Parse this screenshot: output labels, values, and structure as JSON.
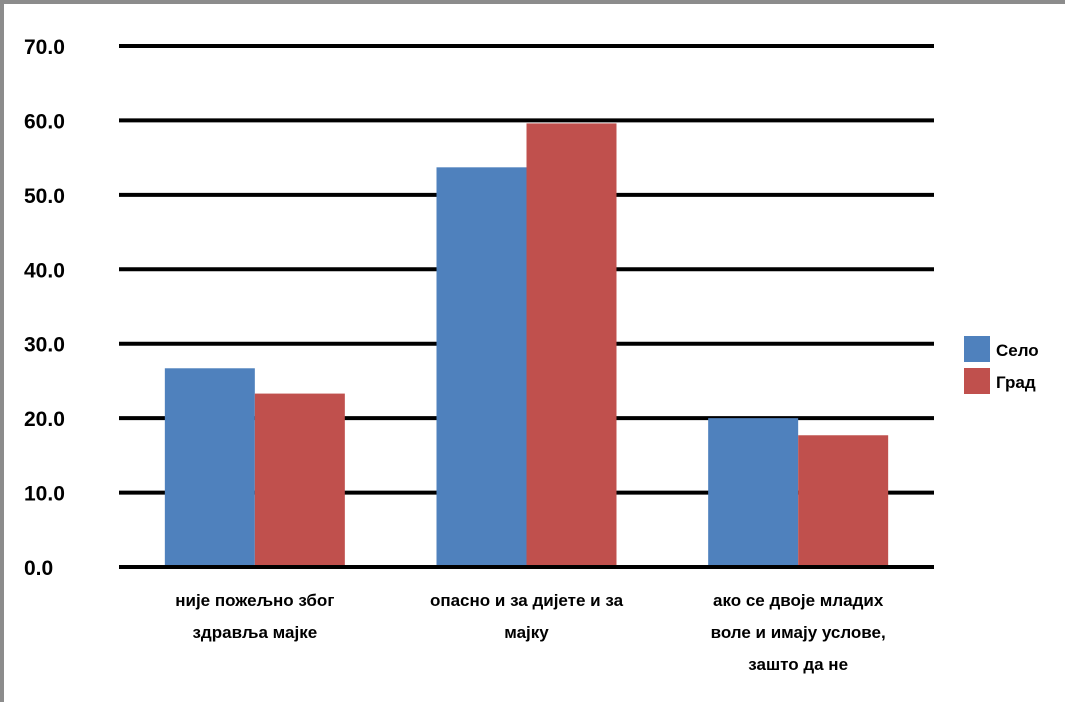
{
  "chart_data": {
    "type": "bar",
    "categories": [
      [
        "није пожељно због",
        "здравља мајке"
      ],
      [
        "опасно и за дијете и за",
        "мајку"
      ],
      [
        "ако се двоје младих",
        "воле и имају услове,",
        "зашто да не"
      ]
    ],
    "series": [
      {
        "name": "Село",
        "values": [
          26.7,
          53.7,
          20.0
        ],
        "color": "#4f81bd"
      },
      {
        "name": "Град",
        "values": [
          23.3,
          59.6,
          17.7
        ],
        "color": "#c0504d"
      }
    ],
    "yticks": [
      "0.0",
      "10.0",
      "20.0",
      "30.0",
      "40.0",
      "50.0",
      "60.0",
      "70.0"
    ],
    "ylim": [
      0,
      70
    ],
    "grid": true,
    "legend_position": "right",
    "title": "",
    "xlabel": "",
    "ylabel": ""
  }
}
